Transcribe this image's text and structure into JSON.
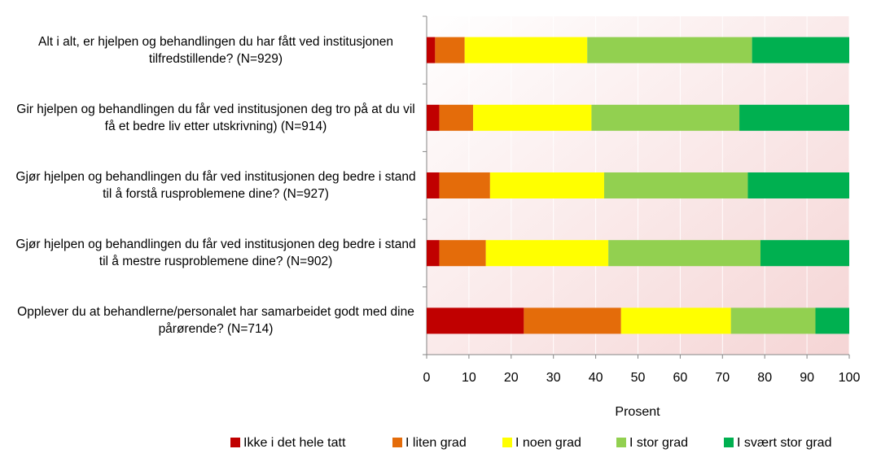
{
  "chart_data": {
    "type": "stacked-barh",
    "categories": [
      "Alt i alt, er hjelpen og behandlingen du har fått ved institusjonen tilfredstillende? (N=929)",
      "Gir hjelpen og behandlingen du får ved institusjonen deg tro på at du vil få et bedre liv etter utskrivning) (N=914)",
      "Gjør hjelpen og behandlingen du får ved institusjonen deg bedre i stand til å forstå rusproblemene dine? (N=927)",
      "Gjør hjelpen og behandlingen du får ved institusjonen deg bedre i stand til å mestre rusproblemene dine? (N=902)",
      "Opplever du at behandlerne/personalet har samarbeidet godt med dine pårørende? (N=714)"
    ],
    "series": [
      {
        "name": "Ikke i det hele tatt",
        "color": "#c00000",
        "values": [
          2,
          3,
          3,
          3,
          23
        ]
      },
      {
        "name": "I liten grad",
        "color": "#e46c0a",
        "values": [
          7,
          8,
          12,
          11,
          23
        ]
      },
      {
        "name": "I noen grad",
        "color": "#ffff00",
        "values": [
          29,
          28,
          27,
          29,
          26
        ]
      },
      {
        "name": "I stor grad",
        "color": "#92d050",
        "values": [
          39,
          35,
          34,
          36,
          20
        ]
      },
      {
        "name": "I svært stor grad",
        "color": "#00b050",
        "values": [
          23,
          26,
          24,
          21,
          8
        ]
      }
    ],
    "xlabel": "Prosent",
    "xlim": [
      0,
      100
    ],
    "xticks": [
      0,
      10,
      20,
      30,
      40,
      50,
      60,
      70,
      80,
      90,
      100
    ],
    "grid": true,
    "legend": "bottom"
  }
}
